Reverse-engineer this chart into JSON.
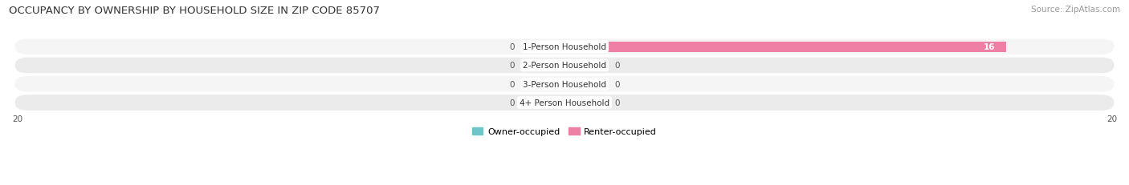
{
  "title": "OCCUPANCY BY OWNERSHIP BY HOUSEHOLD SIZE IN ZIP CODE 85707",
  "source": "Source: ZipAtlas.com",
  "categories": [
    "1-Person Household",
    "2-Person Household",
    "3-Person Household",
    "4+ Person Household"
  ],
  "owner_values": [
    0,
    0,
    0,
    0
  ],
  "renter_values": [
    16,
    0,
    0,
    0
  ],
  "xlim": [
    -20,
    20
  ],
  "owner_color": "#6ec6c8",
  "renter_color": "#f07fa5",
  "row_bg_color": "#ebebeb",
  "row_bg_light": "#f5f5f5",
  "title_fontsize": 9.5,
  "source_fontsize": 7.5,
  "label_fontsize": 7.5,
  "value_fontsize": 7.5,
  "legend_fontsize": 8,
  "bar_height": 0.55,
  "owner_stub": 1.5,
  "renter_stub": 1.5,
  "row_rounding": 0.45
}
